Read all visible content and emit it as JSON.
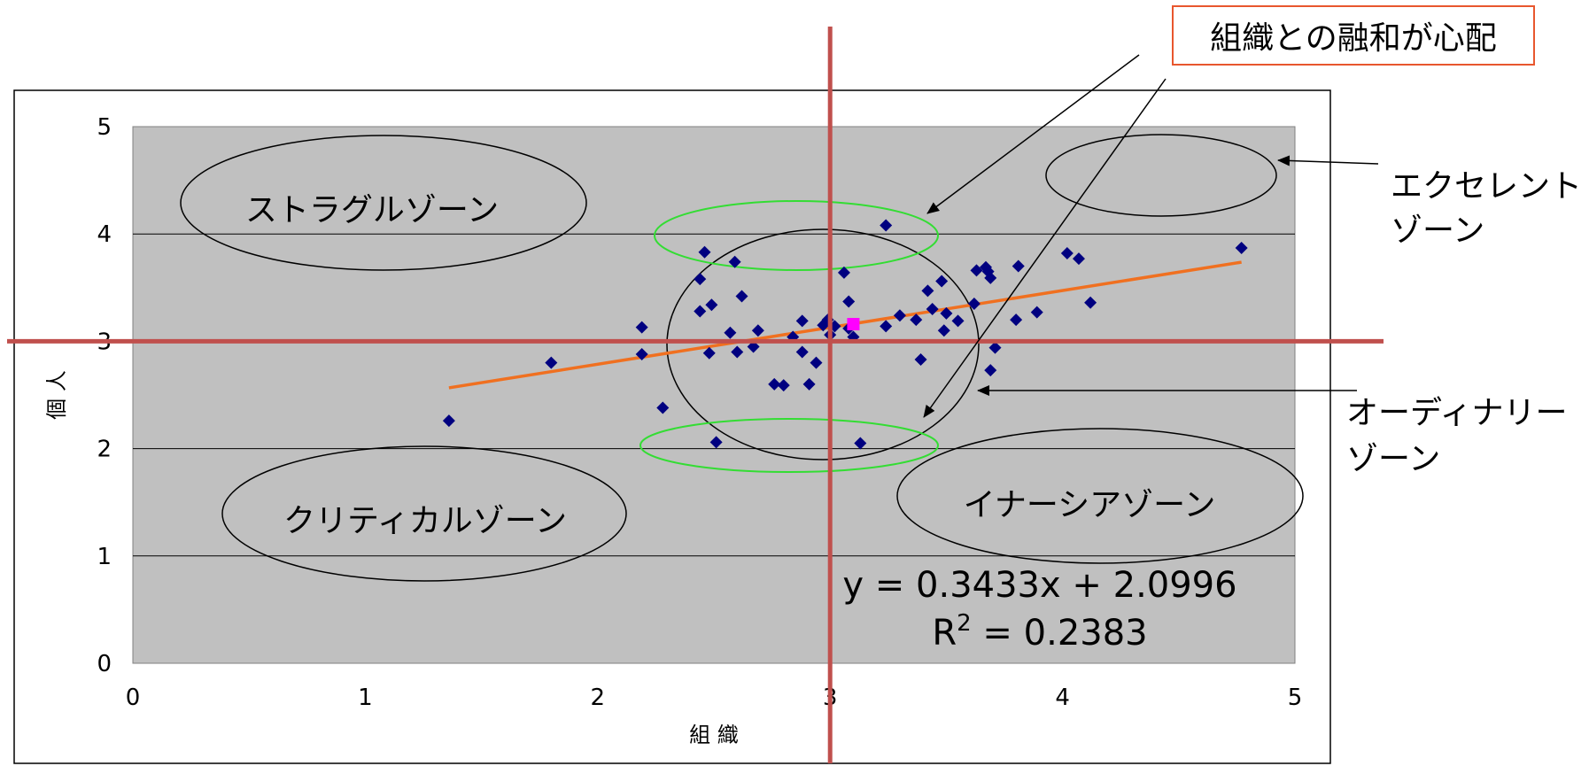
{
  "chart_data": {
    "type": "scatter",
    "title": "",
    "xlabel": "組 織",
    "ylabel": "個 人",
    "xlim": [
      0,
      5
    ],
    "ylim": [
      0,
      5
    ],
    "xticks": [
      "0",
      "1",
      "2",
      "3",
      "4",
      "5"
    ],
    "yticks": [
      "0",
      "1",
      "2",
      "3",
      "4",
      "5"
    ],
    "grid": "horizontal",
    "background": "#c0c0c0",
    "point_color": "#000080",
    "series": [
      {
        "values": [
          [
            1.36,
            2.26
          ],
          [
            1.8,
            2.8
          ],
          [
            2.19,
            3.13
          ],
          [
            2.19,
            2.88
          ],
          [
            2.28,
            2.38
          ],
          [
            2.44,
            3.58
          ],
          [
            2.44,
            3.28
          ],
          [
            2.46,
            3.83
          ],
          [
            2.48,
            2.89
          ],
          [
            2.49,
            3.34
          ],
          [
            2.51,
            2.06
          ],
          [
            2.59,
            3.74
          ],
          [
            2.62,
            3.42
          ],
          [
            2.57,
            3.08
          ],
          [
            2.6,
            2.9
          ],
          [
            2.67,
            2.95
          ],
          [
            2.69,
            3.1
          ],
          [
            2.76,
            2.6
          ],
          [
            2.8,
            2.59
          ],
          [
            2.84,
            3.04
          ],
          [
            2.88,
            3.19
          ],
          [
            2.88,
            2.9
          ],
          [
            2.91,
            2.6
          ],
          [
            2.94,
            2.8
          ],
          [
            2.97,
            3.15
          ],
          [
            2.99,
            3.2
          ],
          [
            3.0,
            3.06
          ],
          [
            3.02,
            3.14
          ],
          [
            3.06,
            3.64
          ],
          [
            3.08,
            3.37
          ],
          [
            3.08,
            3.12
          ],
          [
            3.1,
            3.04
          ],
          [
            3.13,
            2.05
          ],
          [
            3.24,
            4.08
          ],
          [
            3.24,
            3.14
          ],
          [
            3.3,
            3.24
          ],
          [
            3.37,
            3.2
          ],
          [
            3.39,
            2.83
          ],
          [
            3.42,
            3.47
          ],
          [
            3.44,
            3.3
          ],
          [
            3.48,
            3.56
          ],
          [
            3.49,
            3.1
          ],
          [
            3.5,
            3.26
          ],
          [
            3.55,
            3.19
          ],
          [
            3.62,
            3.35
          ],
          [
            3.63,
            3.66
          ],
          [
            3.67,
            3.69
          ],
          [
            3.68,
            3.65
          ],
          [
            3.69,
            3.59
          ],
          [
            3.69,
            2.73
          ],
          [
            3.71,
            2.94
          ],
          [
            3.8,
            3.2
          ],
          [
            3.81,
            3.7
          ],
          [
            3.89,
            3.27
          ],
          [
            4.02,
            3.82
          ],
          [
            4.07,
            3.77
          ],
          [
            4.12,
            3.36
          ],
          [
            4.77,
            3.87
          ]
        ]
      },
      {
        "values": [
          [
            3.1,
            3.16
          ]
        ],
        "color": "#ff00ff"
      }
    ],
    "trendline": {
      "slope": 0.3433,
      "intercept": 2.0996,
      "x_range": [
        1.36,
        4.77
      ],
      "color": "#f07020",
      "equation_line1": "y = 0.3433x + 2.0996",
      "equation_line2_prefix": "R",
      "equation_line2_sup": "2",
      "equation_line2_suffix": " = 0.2383"
    },
    "reference_lines": {
      "x": 3,
      "y": 3,
      "color": "#c0504d"
    }
  },
  "zones": {
    "struggle": "ストラグルゾーン",
    "critical": "クリティカルゾーン",
    "inertia": "イナーシアゾーン"
  },
  "callouts": {
    "excellent_line1": "エクセレント",
    "excellent_line2": "ゾーン",
    "ordinary_line1": "オーディナリー",
    "ordinary_line2": "ゾーン",
    "integration": "組織との融和が心配"
  }
}
